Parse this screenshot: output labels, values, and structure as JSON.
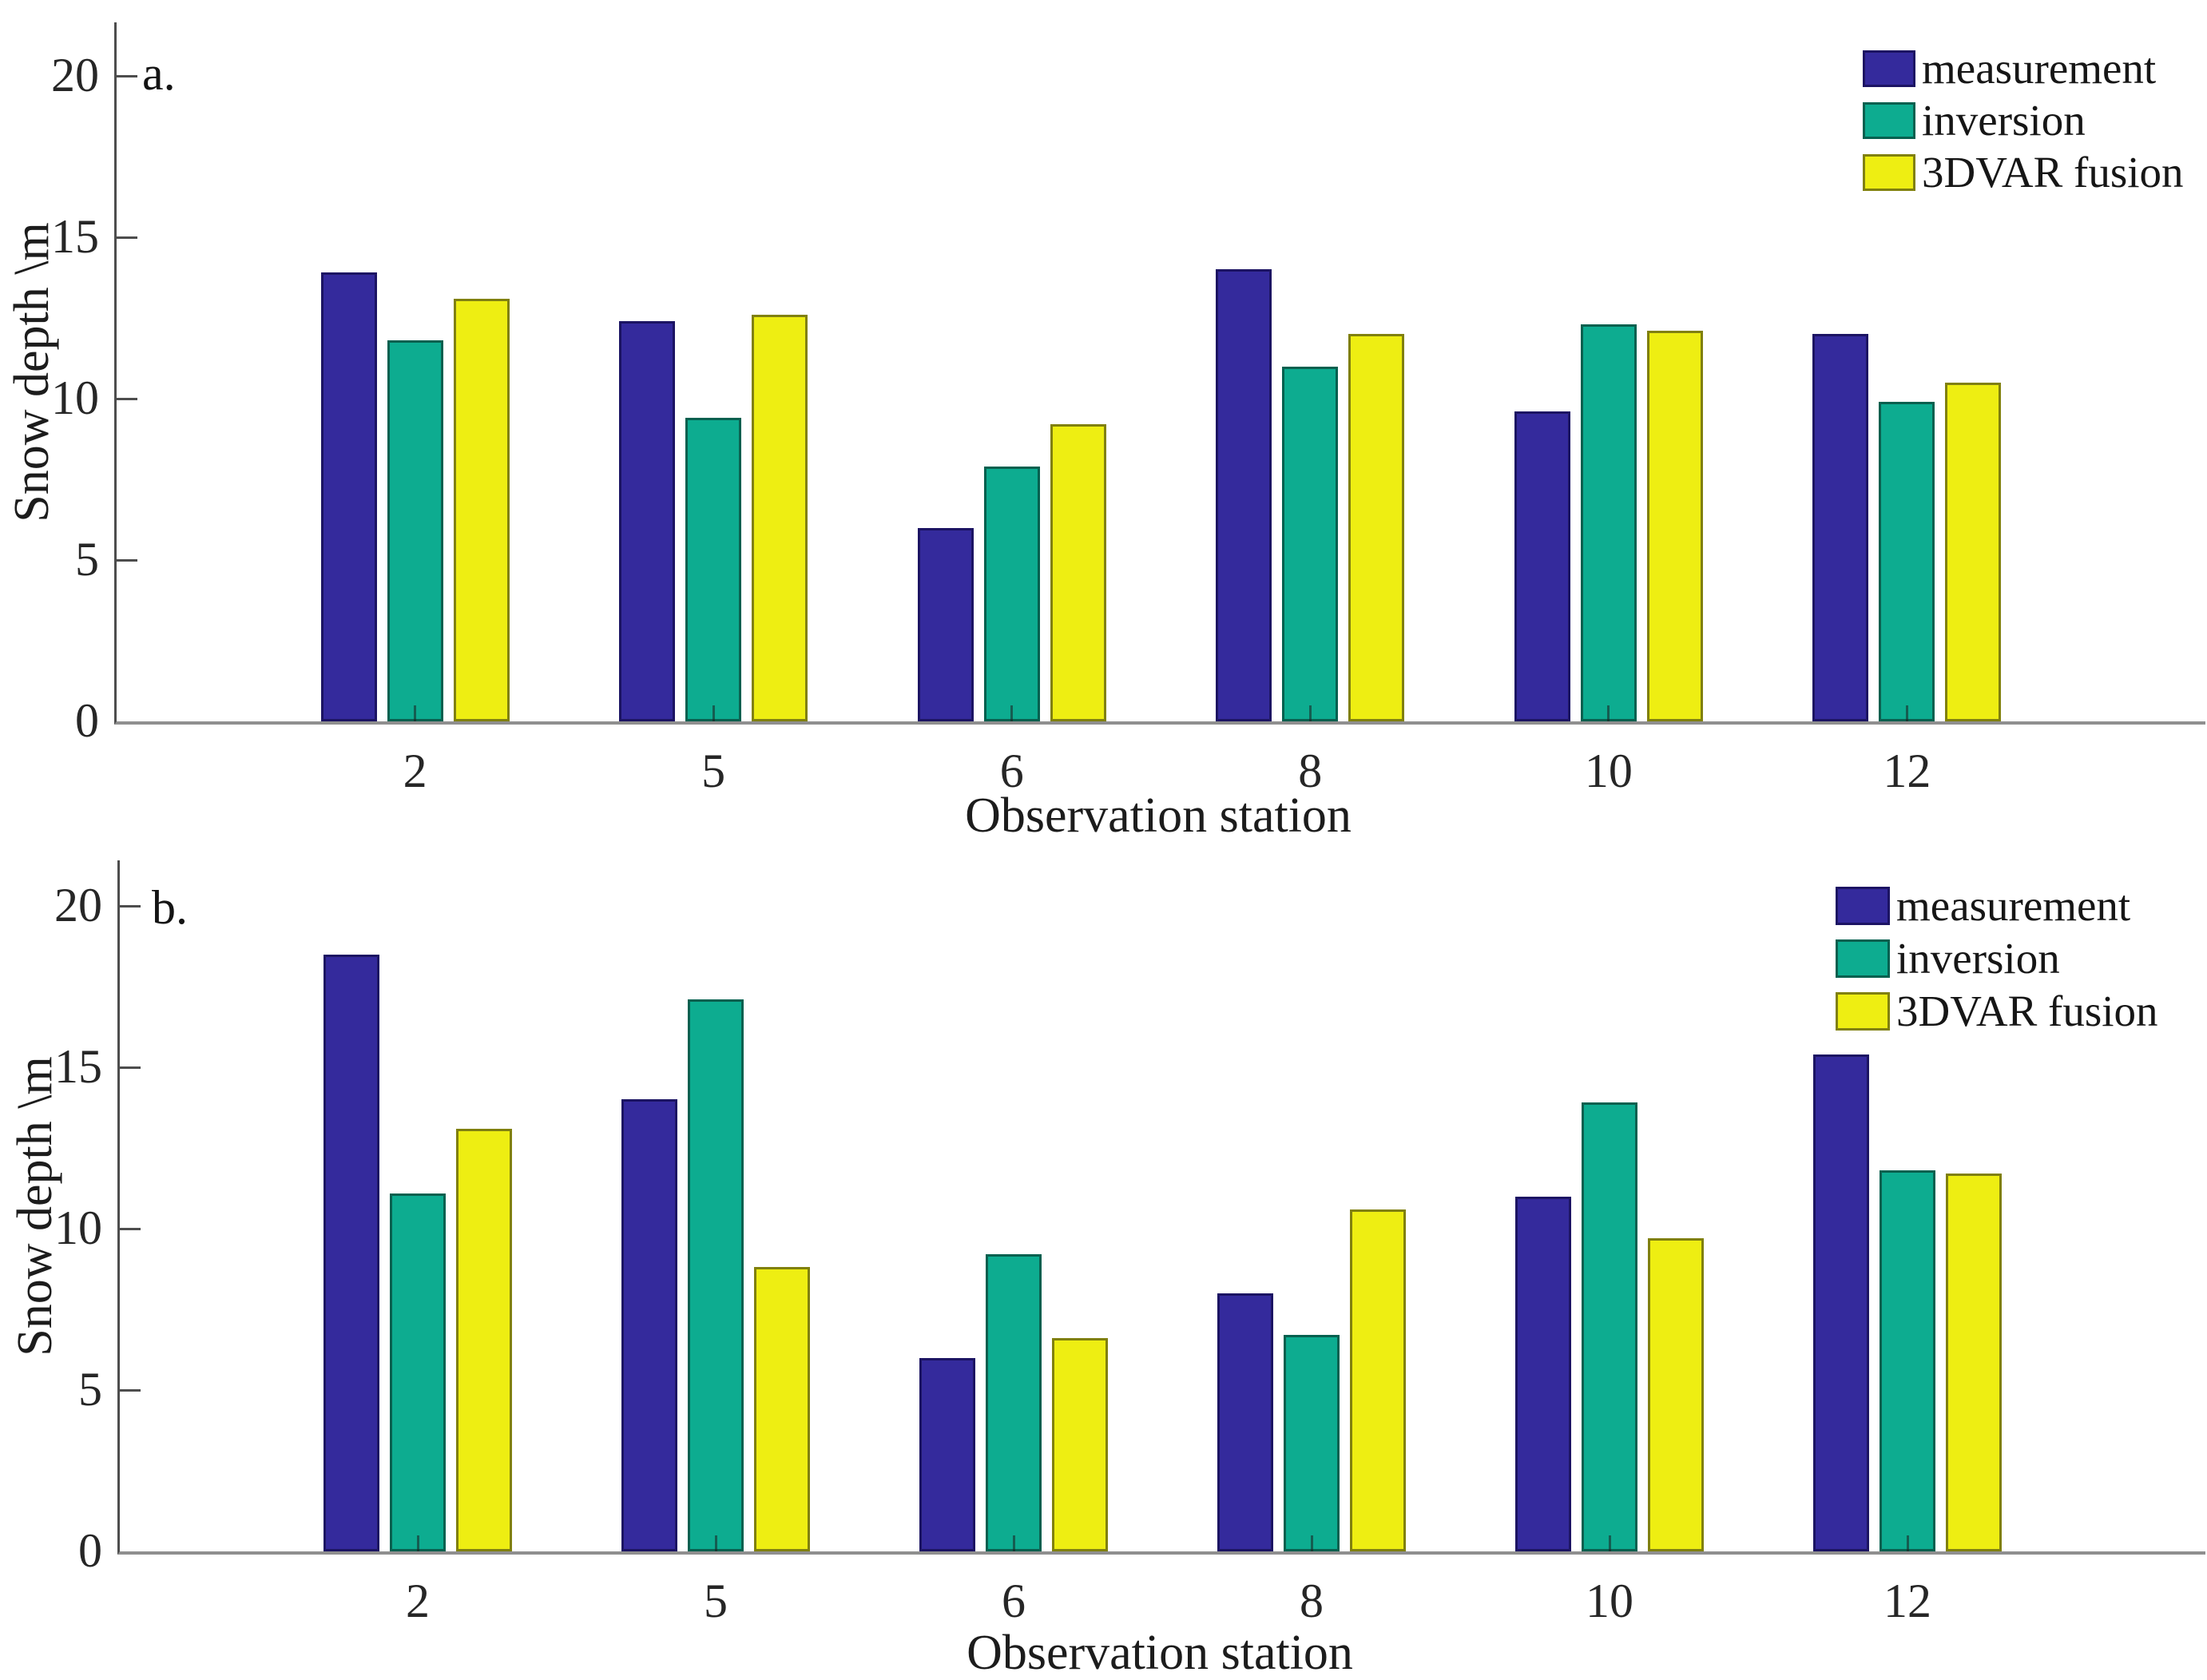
{
  "figure": {
    "background": "#ffffff",
    "text_color": "#1c1c1c",
    "axis_color": "#4d4d4d"
  },
  "chart_data": [
    {
      "type": "bar",
      "panel_label": "a.",
      "xlabel": "Observation station",
      "ylabel": "Snow depth \\m",
      "categories": [
        "2",
        "5",
        "6",
        "8",
        "10",
        "12"
      ],
      "yticks": [
        0,
        5,
        10,
        15,
        20
      ],
      "ylim": [
        0,
        21.6
      ],
      "grid": false,
      "legend_position": "top-right",
      "legend_boxed": false,
      "series": [
        {
          "name": "measurement",
          "color": "#342a9c",
          "edge": "#1c1463",
          "values": [
            13.9,
            12.4,
            6.0,
            14.0,
            9.6,
            12.0
          ]
        },
        {
          "name": "inversion",
          "color": "#0dac90",
          "edge": "#07604f",
          "values": [
            11.8,
            9.4,
            7.9,
            11.0,
            12.3,
            9.9
          ]
        },
        {
          "name": "3DVAR fusion",
          "color": "#eeee12",
          "edge": "#80800f",
          "values": [
            13.1,
            12.6,
            9.2,
            12.0,
            12.1,
            10.5
          ]
        }
      ]
    },
    {
      "type": "bar",
      "panel_label": "b.",
      "xlabel": "Observation station",
      "ylabel": "Snow depth \\m",
      "categories": [
        "2",
        "5",
        "6",
        "8",
        "10",
        "12"
      ],
      "yticks": [
        0,
        5,
        10,
        15,
        20
      ],
      "ylim": [
        0,
        21.4
      ],
      "grid": false,
      "legend_position": "top-right",
      "legend_boxed": false,
      "series": [
        {
          "name": "measurement",
          "color": "#342a9c",
          "edge": "#1c1463",
          "values": [
            18.5,
            14.0,
            6.0,
            8.0,
            11.0,
            15.4
          ]
        },
        {
          "name": "inversion",
          "color": "#0dac90",
          "edge": "#07604f",
          "values": [
            11.1,
            17.1,
            9.2,
            6.7,
            13.9,
            11.8
          ]
        },
        {
          "name": "3DVAR fusion",
          "color": "#eeee12",
          "edge": "#80800f",
          "values": [
            13.1,
            8.8,
            6.6,
            10.6,
            9.7,
            11.7
          ]
        }
      ]
    }
  ]
}
